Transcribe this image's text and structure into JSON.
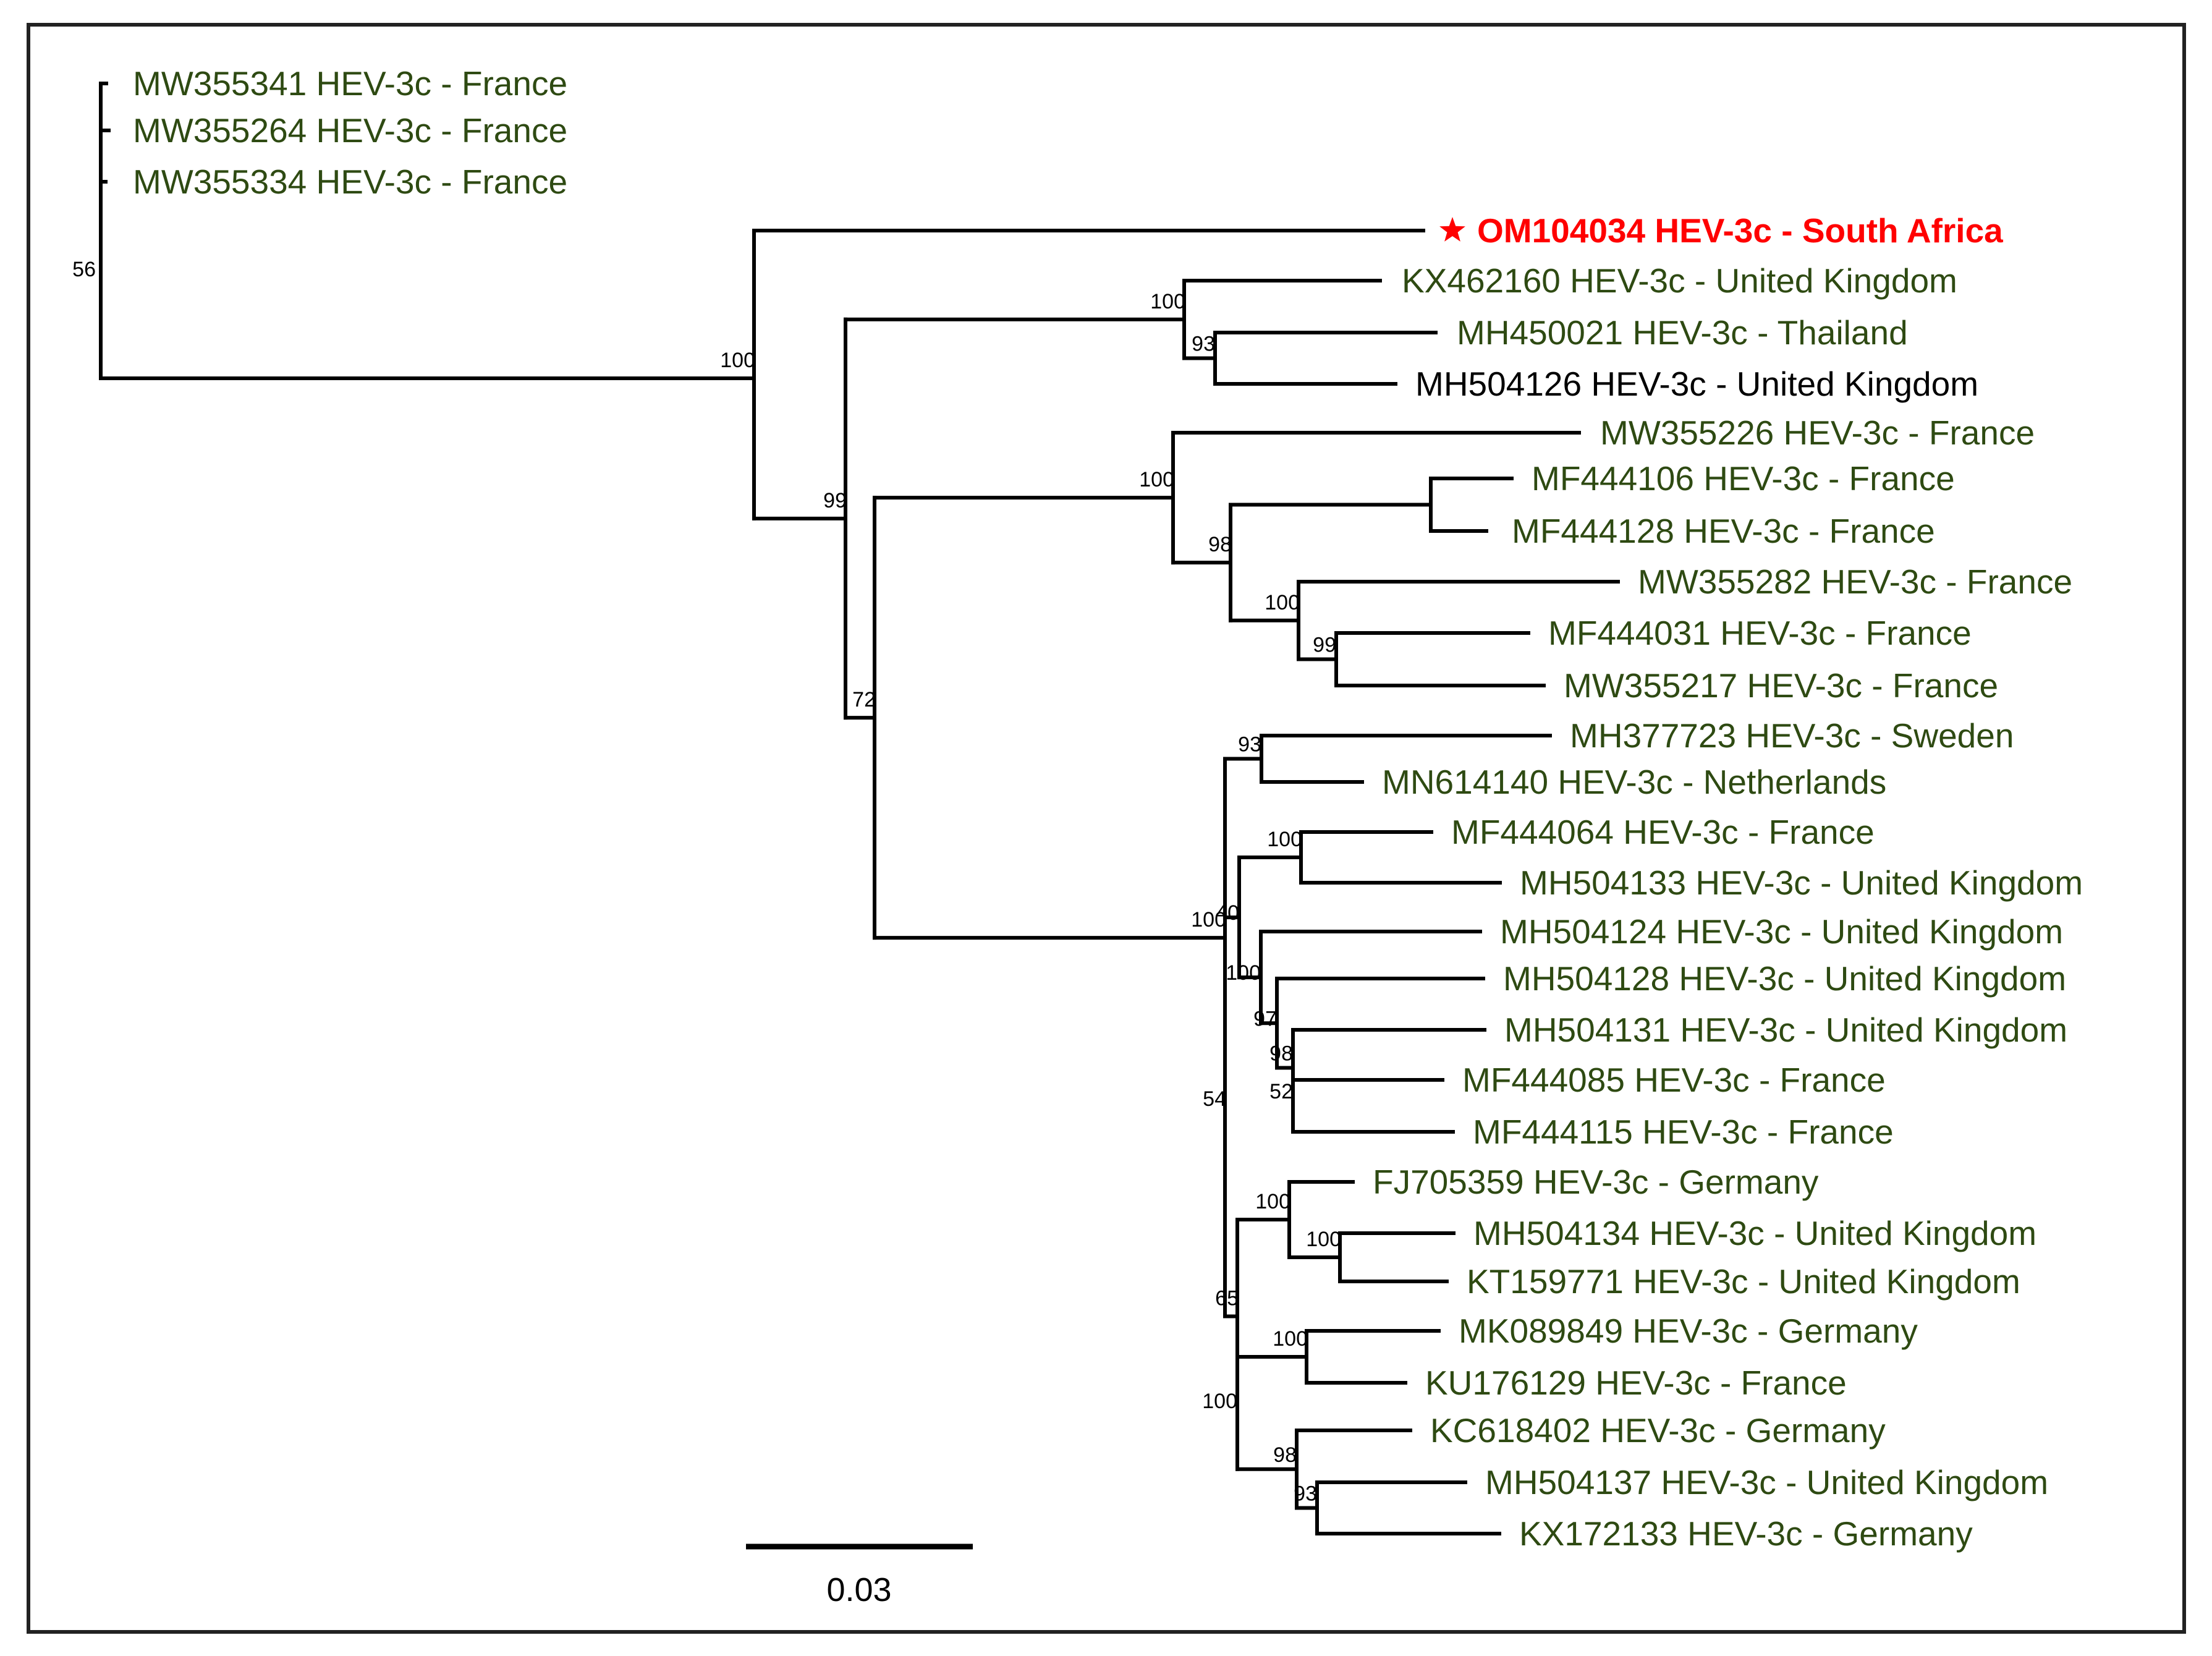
{
  "figure": {
    "type": "phylogenetic-tree",
    "scale_bar_label": "0.03",
    "colors": {
      "default_leaf": "#2e4a12",
      "black_leaf": "#000000",
      "highlight": "#ff0000",
      "branch": "#000000"
    },
    "highlight_marker_icon": "star-icon"
  },
  "taxa": [
    {
      "id": "t1",
      "label": "MW355341 HEV-3c - France",
      "color": "default_leaf"
    },
    {
      "id": "t2",
      "label": "MW355264 HEV-3c - France",
      "color": "default_leaf"
    },
    {
      "id": "t3",
      "label": "MW355334 HEV-3c - France",
      "color": "default_leaf"
    },
    {
      "id": "t4",
      "label": "OM104034 HEV-3c - South Africa",
      "color": "highlight",
      "marker": "star"
    },
    {
      "id": "t5",
      "label": "KX462160 HEV-3c - United Kingdom",
      "color": "default_leaf"
    },
    {
      "id": "t6",
      "label": "MH450021 HEV-3c - Thailand",
      "color": "default_leaf"
    },
    {
      "id": "t7",
      "label": "MH504126 HEV-3c - United Kingdom",
      "color": "black_leaf"
    },
    {
      "id": "t8",
      "label": "MW355226 HEV-3c - France",
      "color": "default_leaf"
    },
    {
      "id": "t9",
      "label": "MF444106 HEV-3c - France",
      "color": "default_leaf"
    },
    {
      "id": "t10",
      "label": "MF444128 HEV-3c - France",
      "color": "default_leaf"
    },
    {
      "id": "t11",
      "label": "MW355282 HEV-3c - France",
      "color": "default_leaf"
    },
    {
      "id": "t12",
      "label": "MF444031 HEV-3c - France",
      "color": "default_leaf"
    },
    {
      "id": "t13",
      "label": "MW355217 HEV-3c - France",
      "color": "default_leaf"
    },
    {
      "id": "t14",
      "label": "MH377723 HEV-3c - Sweden",
      "color": "default_leaf"
    },
    {
      "id": "t15",
      "label": "MN614140 HEV-3c - Netherlands",
      "color": "default_leaf"
    },
    {
      "id": "t16",
      "label": "MF444064 HEV-3c - France",
      "color": "default_leaf"
    },
    {
      "id": "t17",
      "label": "MH504133 HEV-3c - United Kingdom",
      "color": "default_leaf"
    },
    {
      "id": "t18",
      "label": "MH504124 HEV-3c - United Kingdom",
      "color": "default_leaf"
    },
    {
      "id": "t19",
      "label": "MH504128 HEV-3c - United Kingdom",
      "color": "default_leaf"
    },
    {
      "id": "t20",
      "label": "MH504131 HEV-3c - United Kingdom",
      "color": "default_leaf"
    },
    {
      "id": "t21",
      "label": "MF444085 HEV-3c - France",
      "color": "default_leaf"
    },
    {
      "id": "t22",
      "label": "MF444115 HEV-3c - France",
      "color": "default_leaf"
    },
    {
      "id": "t23",
      "label": "FJ705359 HEV-3c - Germany",
      "color": "default_leaf"
    },
    {
      "id": "t24",
      "label": "MH504134 HEV-3c - United Kingdom",
      "color": "default_leaf"
    },
    {
      "id": "t25",
      "label": "KT159771 HEV-3c - United Kingdom",
      "color": "default_leaf"
    },
    {
      "id": "t26",
      "label": "MK089849 HEV-3c - Germany",
      "color": "default_leaf"
    },
    {
      "id": "t27",
      "label": "KU176129 HEV-3c - France",
      "color": "default_leaf"
    },
    {
      "id": "t28",
      "label": "KC618402 HEV-3c - Germany",
      "color": "default_leaf"
    },
    {
      "id": "t29",
      "label": "MH504137 HEV-3c - United Kingdom",
      "color": "default_leaf"
    },
    {
      "id": "t30",
      "label": "KX172133 HEV-3c - Germany",
      "color": "default_leaf"
    }
  ],
  "bootstrap": [
    {
      "id": "n_root",
      "value": "56"
    },
    {
      "id": "n_a",
      "value": "100"
    },
    {
      "id": "n_b",
      "value": "99"
    },
    {
      "id": "n_c",
      "value": "100"
    },
    {
      "id": "n_d",
      "value": "93"
    },
    {
      "id": "n_e",
      "value": "72"
    },
    {
      "id": "n_f",
      "value": "100"
    },
    {
      "id": "n_g",
      "value": "98"
    },
    {
      "id": "n_h",
      "value": "100"
    },
    {
      "id": "n_i",
      "value": "99"
    },
    {
      "id": "n_j",
      "value": "100"
    },
    {
      "id": "n_k",
      "value": "54"
    },
    {
      "id": "n_l",
      "value": "93"
    },
    {
      "id": "n_m",
      "value": "40"
    },
    {
      "id": "n_n",
      "value": "100"
    },
    {
      "id": "n_o",
      "value": "100"
    },
    {
      "id": "n_p",
      "value": "97"
    },
    {
      "id": "n_q",
      "value": "98"
    },
    {
      "id": "n_r",
      "value": "52"
    },
    {
      "id": "n_s",
      "value": "65"
    },
    {
      "id": "n_t",
      "value": "100"
    },
    {
      "id": "n_u",
      "value": "100"
    },
    {
      "id": "n_v",
      "value": "100"
    },
    {
      "id": "n_w",
      "value": "100"
    },
    {
      "id": "n_x",
      "value": "98"
    },
    {
      "id": "n_y",
      "value": "93"
    }
  ]
}
